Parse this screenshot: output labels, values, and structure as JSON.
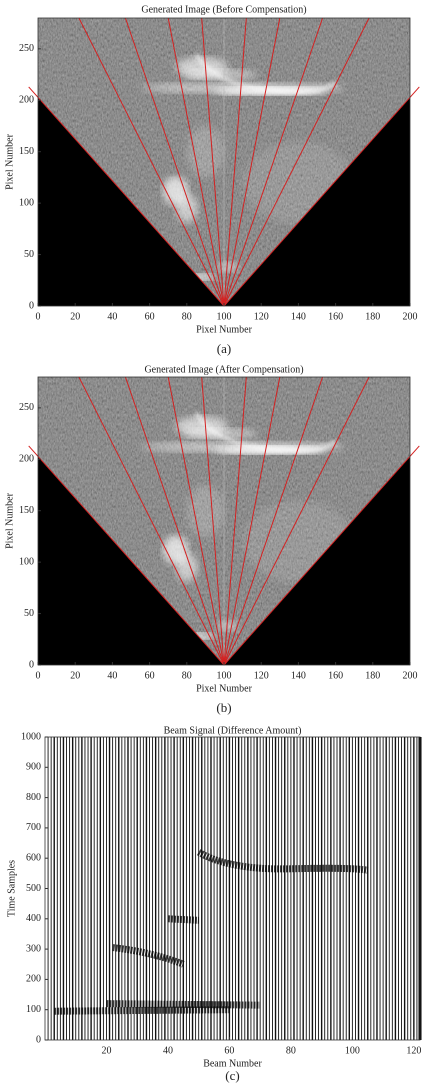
{
  "chart_data": [
    {
      "type": "image",
      "title": "Generated Image (Before Compensation)",
      "xlabel": "Pixel Number",
      "ylabel": "Pixel Number",
      "caption": "(a)",
      "xlim": [
        0,
        200
      ],
      "ylim": [
        0,
        280
      ],
      "xticks": [
        0,
        20,
        40,
        60,
        80,
        100,
        120,
        140,
        160,
        180,
        200
      ],
      "yticks": [
        0,
        50,
        100,
        150,
        200,
        250
      ]
    },
    {
      "type": "image",
      "title": "Generated Image (After Compensation)",
      "xlabel": "Pixel Number",
      "ylabel": "Pixel Number",
      "caption": "(b)",
      "xlim": [
        0,
        200
      ],
      "ylim": [
        0,
        280
      ],
      "xticks": [
        0,
        20,
        40,
        60,
        80,
        100,
        120,
        140,
        160,
        180,
        200
      ],
      "yticks": [
        0,
        50,
        100,
        150,
        200,
        250
      ]
    },
    {
      "type": "signal",
      "title": "Beam Signal (Difference Amount)",
      "xlabel": "Beam Number",
      "ylabel": "Time Samples",
      "caption": "(c)",
      "xlim": [
        0,
        122
      ],
      "ylim": [
        0,
        1000
      ],
      "xticks": [
        20,
        40,
        60,
        80,
        100,
        120
      ],
      "yticks": [
        0,
        100,
        200,
        300,
        400,
        500,
        600,
        700,
        800,
        900,
        1000
      ]
    }
  ]
}
